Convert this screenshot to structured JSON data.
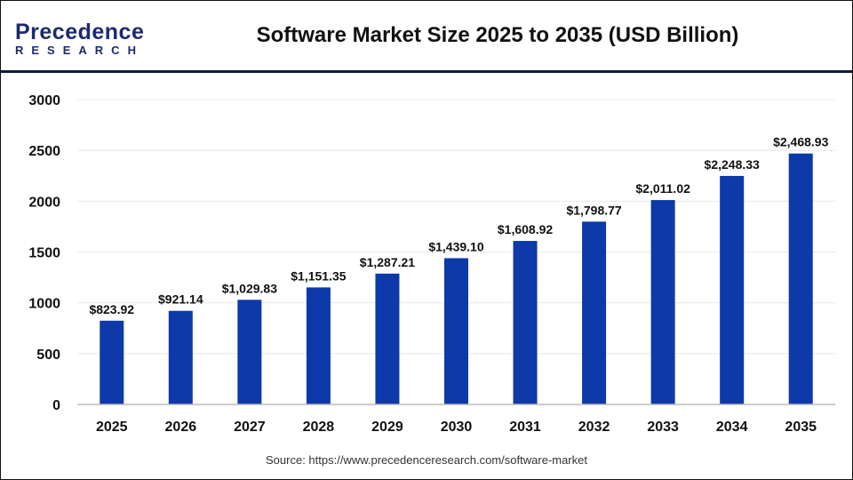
{
  "logo": {
    "line1": "Precedence",
    "line2": "RESEARCH"
  },
  "title": "Software Market Size 2025 to 2035 (USD Billion)",
  "source": "Source: https://www.precedenceresearch.com/software-market",
  "colors": {
    "bar": "#0d39a9",
    "header_line": "#0f1a3d",
    "grid": "#e8e8e8"
  },
  "chart_data": {
    "type": "bar",
    "title": "Software Market Size 2025 to 2035 (USD Billion)",
    "categories": [
      "2025",
      "2026",
      "2027",
      "2028",
      "2029",
      "2030",
      "2031",
      "2032",
      "2033",
      "2034",
      "2035"
    ],
    "values": [
      823.92,
      921.14,
      1029.83,
      1151.35,
      1287.21,
      1439.1,
      1608.92,
      1798.77,
      2011.02,
      2248.33,
      2468.93
    ],
    "data_labels": [
      "$823.92",
      "$921.14",
      "$1,029.83",
      "$1,151.35",
      "$1,287.21",
      "$1,439.10",
      "$1,608.92",
      "$1,798.77",
      "$2,011.02",
      "$2,248.33",
      "$2,468.93"
    ],
    "yticks": [
      0,
      500,
      1000,
      1500,
      2000,
      2500,
      3000
    ],
    "ylim": [
      0,
      3000
    ],
    "grid": true,
    "xlabel": "",
    "ylabel": ""
  }
}
